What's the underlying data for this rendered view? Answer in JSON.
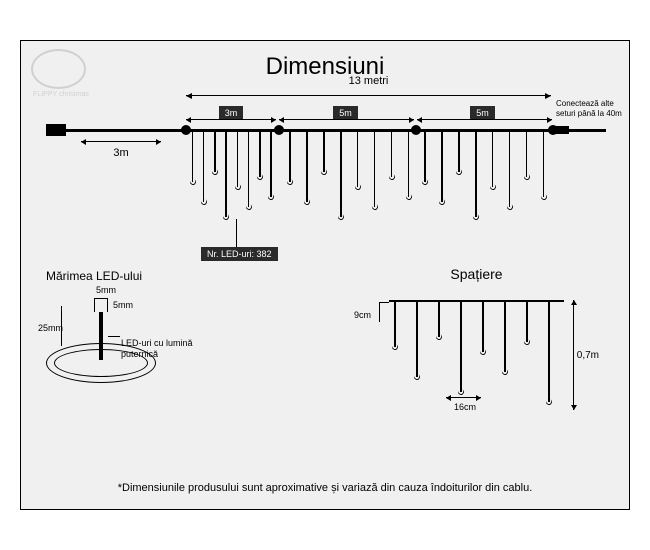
{
  "title": "Dimensiuni",
  "logo_text": "FLIPPY christmas",
  "total_length": "13 metri",
  "segments": [
    "3m",
    "5m",
    "5m"
  ],
  "feed_length": "3m",
  "connect_note": "Conectează alte seturi până la 40m",
  "led_count_label": "Nr. LED-uri: 382",
  "led_size": {
    "title": "Mărimea LED-ului",
    "dim_5mm_top": "5mm",
    "dim_5mm_side": "5mm",
    "dim_25mm": "25mm",
    "desc": "LED-uri cu lumină puternică"
  },
  "spacing": {
    "title": "Spațiere",
    "horiz": "9cm",
    "gap": "16cm",
    "height": "0,7m"
  },
  "footnote": "*Dimensiunile produsului sunt aproximative și variază din cauza îndoiturilor din cablu.",
  "colors": {
    "bg": "#f0f0f0",
    "label_bg": "#2a2a2a",
    "stroke": "#000000"
  },
  "main_strands": {
    "group_starts": [
      135,
      230,
      365
    ],
    "group_width": 90,
    "count_per_group": 8,
    "heights": [
      50,
      70,
      40,
      85,
      55,
      75,
      45,
      65
    ]
  },
  "spacing_strands": {
    "start": 40,
    "spacing": 22,
    "count": 8,
    "heights": [
      45,
      75,
      35,
      90,
      50,
      70,
      40,
      100
    ]
  }
}
